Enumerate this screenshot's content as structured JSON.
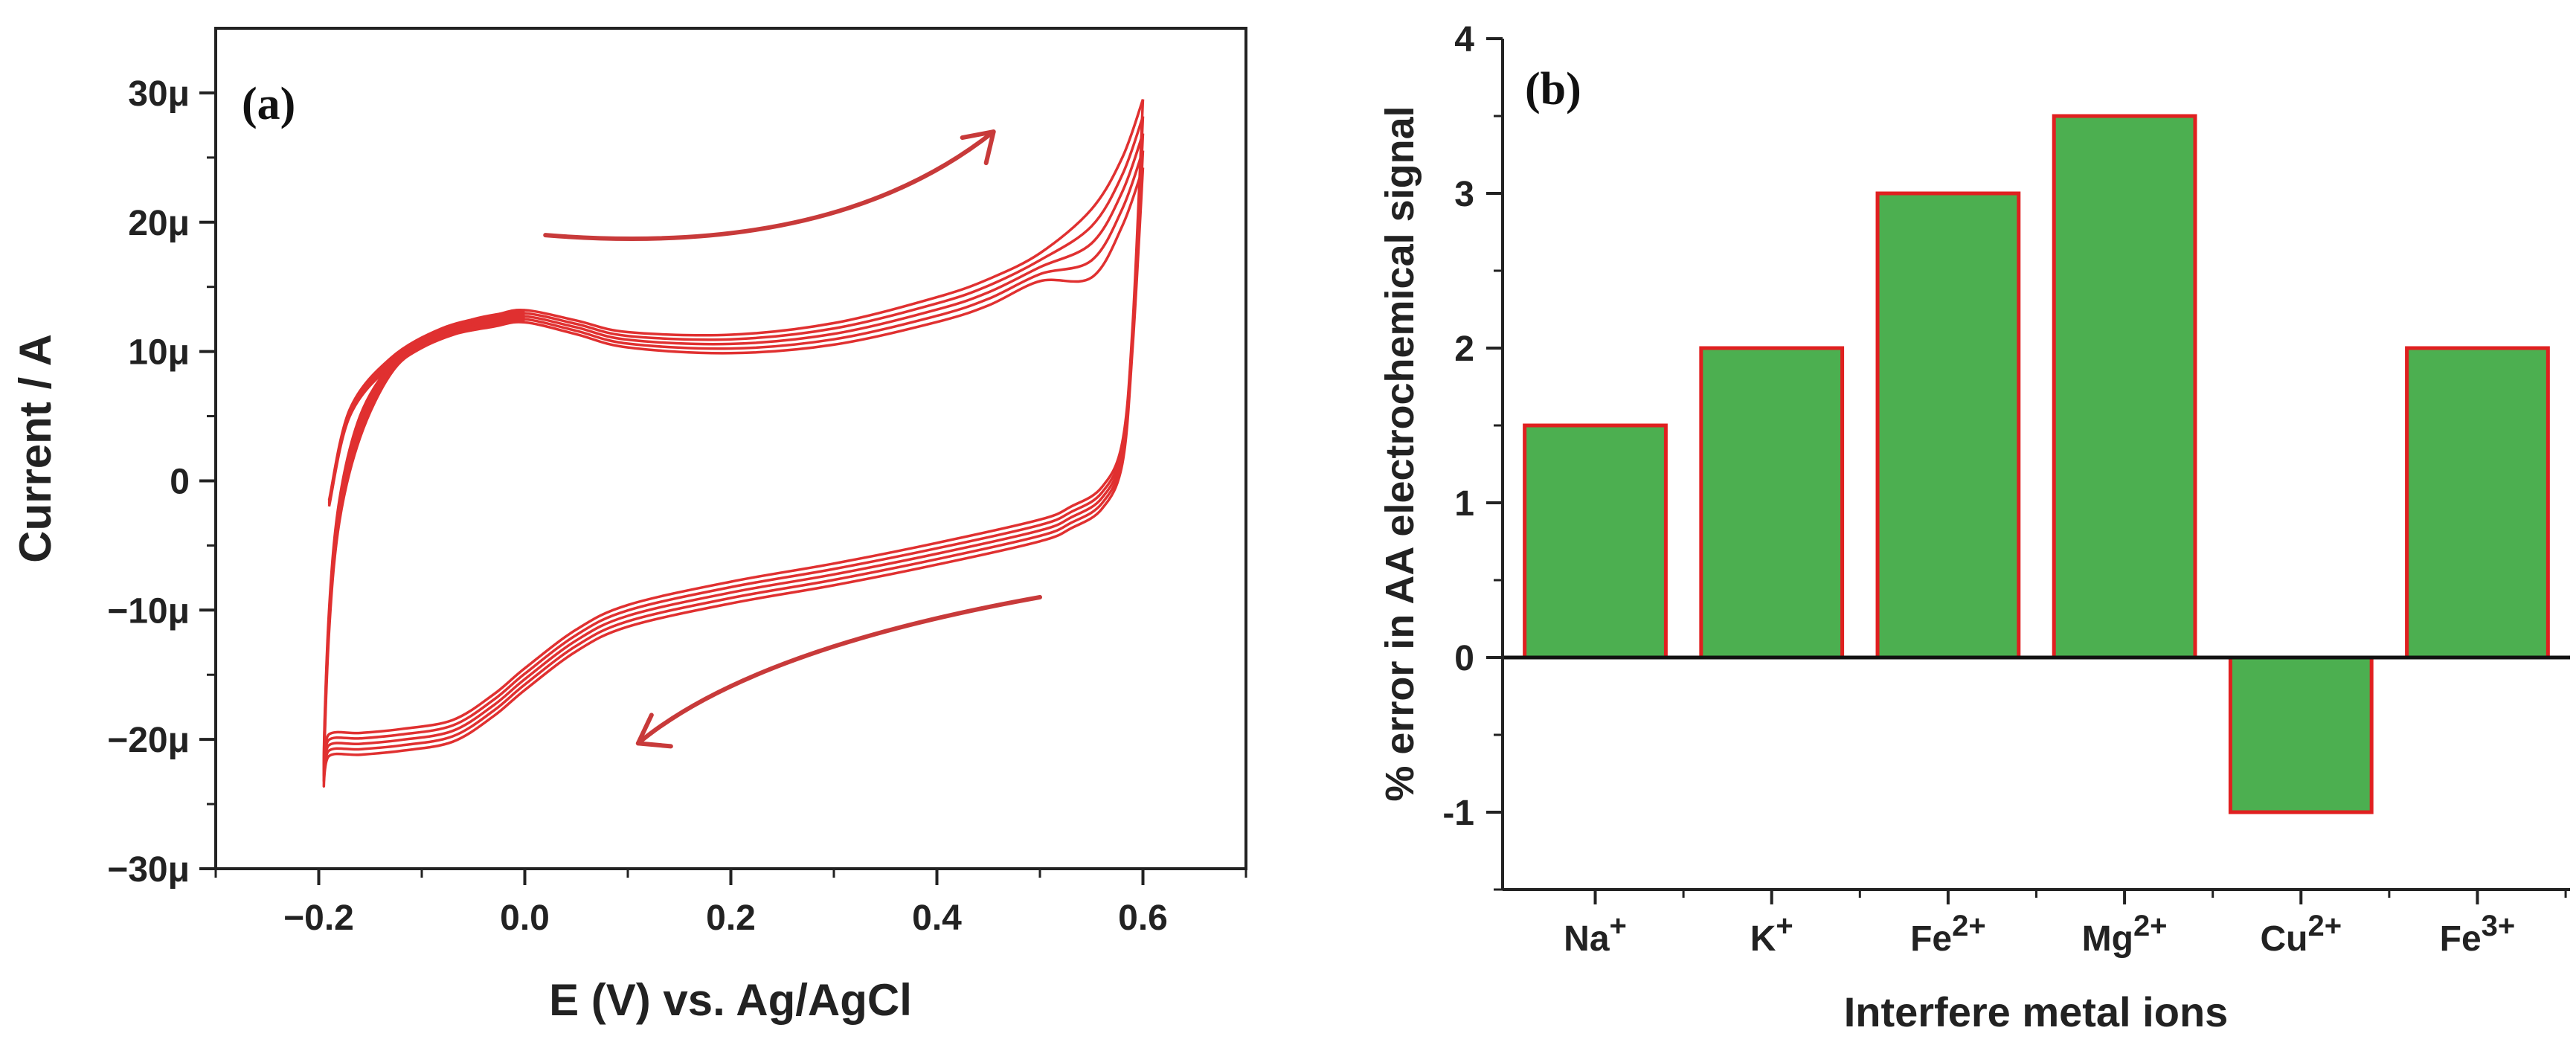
{
  "panel_a": {
    "panel_label": "(a)",
    "curve_color": "#e03030",
    "arrow_color": "#c83a3a"
  },
  "panel_b": {
    "panel_label": "(b)",
    "bar_fill": "#4caf50",
    "bar_edge": "#e02020"
  },
  "chart_data": [
    {
      "type": "line",
      "title": "",
      "xlabel": "E (V) vs. Ag/AgCl",
      "ylabel": "Current / A",
      "xlim": [
        -0.3,
        0.7
      ],
      "ylim": [
        -30,
        35
      ],
      "y_unit": "µA",
      "x_ticks": [
        -0.2,
        0.0,
        0.2,
        0.4,
        0.6
      ],
      "x_tick_labels": [
        "−0.2",
        "0.0",
        "0.2",
        "0.4",
        "0.6"
      ],
      "y_ticks": [
        -30,
        -20,
        -10,
        0,
        10,
        20,
        30
      ],
      "y_tick_labels": [
        "−30μ",
        "−20μ",
        "−10μ",
        "0",
        "10μ",
        "20μ",
        "30μ"
      ],
      "cycles": 5,
      "anodic_x": [
        -0.19,
        -0.17,
        -0.13,
        -0.08,
        -0.03,
        0.0,
        0.05,
        0.1,
        0.2,
        0.3,
        0.4,
        0.45,
        0.5,
        0.55,
        0.58,
        0.6
      ],
      "anodic_y": [
        -1.5,
        5.5,
        9.5,
        11.8,
        12.8,
        13.2,
        12.4,
        11.5,
        11.3,
        12.2,
        14.2,
        15.6,
        17.6,
        21.0,
        25.0,
        29.5
      ],
      "cathodic_x": [
        0.6,
        0.59,
        0.58,
        0.56,
        0.53,
        0.5,
        0.4,
        0.3,
        0.2,
        0.1,
        0.05,
        0.0,
        -0.03,
        -0.07,
        -0.12,
        -0.16,
        -0.19,
        -0.195,
        -0.19,
        -0.18,
        -0.16,
        -0.13,
        -0.1,
        -0.05,
        0.0
      ],
      "cathodic_y": [
        29.5,
        12.0,
        3.0,
        -0.5,
        -2.0,
        -3.0,
        -4.8,
        -6.4,
        -7.8,
        -9.6,
        -11.5,
        -14.5,
        -16.5,
        -18.5,
        -19.2,
        -19.5,
        -19.6,
        -21.5,
        -10.0,
        -1.5,
        5.0,
        9.0,
        11.0,
        12.5,
        13.2
      ],
      "cycle_offsets": [
        0,
        -0.6,
        -1.2,
        -1.8,
        -2.4
      ],
      "arrows": [
        "forward scan (upper, left to right)",
        "reverse scan (lower, right to left)"
      ]
    },
    {
      "type": "bar",
      "title": "",
      "xlabel": "Interfere metal ions",
      "ylabel": "% error in AA electrochemical signal",
      "ylim": [
        -1.5,
        4
      ],
      "y_ticks": [
        -1,
        0,
        1,
        2,
        3,
        4
      ],
      "y_tick_labels": [
        "-1",
        "0",
        "1",
        "2",
        "3",
        "4"
      ],
      "categories": [
        {
          "base": "Na",
          "sup": "+"
        },
        {
          "base": "K",
          "sup": "+"
        },
        {
          "base": "Fe",
          "sup": "2+"
        },
        {
          "base": "Mg",
          "sup": "2+"
        },
        {
          "base": "Cu",
          "sup": "2+"
        },
        {
          "base": "Fe",
          "sup": "3+"
        }
      ],
      "values": [
        1.5,
        2.0,
        3.0,
        3.5,
        -1.0,
        2.0
      ]
    }
  ]
}
